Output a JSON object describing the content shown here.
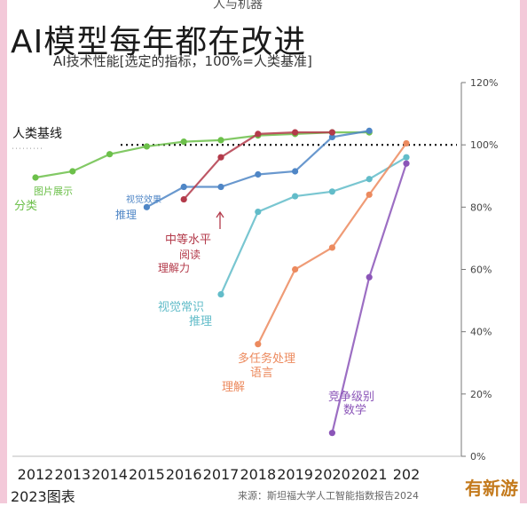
{
  "header": {
    "top_cut_text": "人与机器",
    "title": "AI模型每年都在改进",
    "subtitle": "AI技术性能[选定的指标，100%=人类基准]"
  },
  "footer": {
    "year_note": "2023图表",
    "source": "来源：斯坦福大学人工智能指数报告2024",
    "badge": "有新游"
  },
  "chart_data": {
    "type": "line",
    "title": "AI模型每年都在改进",
    "subtitle": "AI技术性能[选定的指标，100%=人类基准]",
    "categories": [
      "2012",
      "2013",
      "2014",
      "2015",
      "2016",
      "2017",
      "2018",
      "2019",
      "2020",
      "2021",
      "202"
    ],
    "x_axis_start": 2012,
    "ylim": [
      0,
      120
    ],
    "y_ticks": [
      0,
      20,
      40,
      60,
      80,
      100,
      120
    ],
    "y_tick_labels": [
      "0%",
      "20%",
      "40%",
      "60%",
      "80%",
      "100%",
      "120%"
    ],
    "y_axis_position": "right",
    "grid": false,
    "baseline": {
      "label": "人类基线",
      "value": 100
    },
    "series": [
      {
        "name": "图片展示 分类",
        "label_lines": [
          "图片展示",
          "分类"
        ],
        "color": "#6cc04a",
        "x": [
          2012,
          2013,
          2014,
          2015,
          2016,
          2017,
          2018,
          2019,
          2020,
          2021
        ],
        "values": [
          89.5,
          91.5,
          97,
          99.5,
          101,
          101.5,
          103,
          103.5,
          104,
          104
        ]
      },
      {
        "name": "视觉效果 推理",
        "label_lines": [
          "视觉效果",
          "推理"
        ],
        "color": "#4f86c6",
        "x": [
          2015,
          2016,
          2017,
          2018,
          2019,
          2020,
          2021
        ],
        "values": [
          80,
          86.5,
          86.5,
          90.5,
          91.5,
          102.5,
          104.5
        ]
      },
      {
        "name": "中等水平 阅读 理解力",
        "label_lines": [
          "中等水平",
          "阅读",
          "理解力"
        ],
        "color": "#b33a4a",
        "x": [
          2016,
          2017,
          2018,
          2019,
          2020
        ],
        "values": [
          82.5,
          96,
          103.5,
          104,
          104
        ]
      },
      {
        "name": "视觉常识 推理",
        "label_lines": [
          "视觉常识",
          "推理"
        ],
        "color": "#62bcc9",
        "x": [
          2017,
          2018,
          2019,
          2020,
          2021,
          2022
        ],
        "values": [
          52,
          78.5,
          83.5,
          85,
          89,
          96
        ]
      },
      {
        "name": "多任务处理 语言 理解",
        "label_lines": [
          "多任务处理",
          "语言",
          "理解"
        ],
        "color": "#ec8a5e",
        "x": [
          2018,
          2019,
          2020,
          2021,
          2022
        ],
        "values": [
          36,
          60,
          67,
          84,
          100.5
        ]
      },
      {
        "name": "竞争级别 数学",
        "label_lines": [
          "竞争级别",
          "数学"
        ],
        "color": "#8b55b8",
        "x": [
          2020,
          2021,
          2022
        ],
        "values": [
          7.5,
          57.5,
          94
        ]
      }
    ]
  }
}
